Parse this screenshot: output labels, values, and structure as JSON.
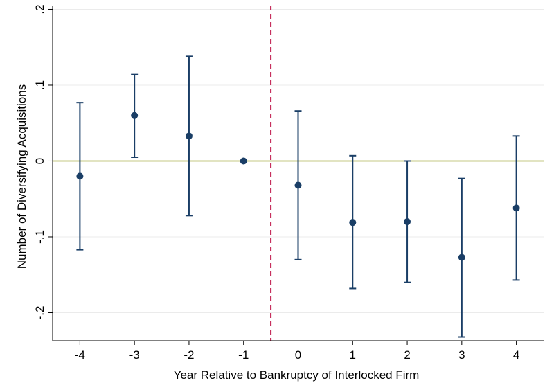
{
  "chart_data": {
    "type": "scatter",
    "title": "",
    "xlabel": "Year Relative to Bankruptcy of Interlocked Firm",
    "ylabel": "Number of Diversifying Acquisitions",
    "x_ticks": [
      "-4",
      "-3",
      "-2",
      "-1",
      "0",
      "1",
      "2",
      "3",
      "4"
    ],
    "y_ticks": [
      {
        "value": 0.2,
        "label": ".2"
      },
      {
        "value": 0.1,
        "label": ".1"
      },
      {
        "value": 0,
        "label": "0"
      },
      {
        "value": -0.1,
        "label": "-.1"
      },
      {
        "value": -0.2,
        "label": "-.2"
      }
    ],
    "xlim": [
      -4.5,
      4.5
    ],
    "ylim": [
      -0.237,
      0.205
    ],
    "grid": true,
    "reference_lines": {
      "horizontal_y": 0,
      "vertical_x": -0.5
    },
    "colors": {
      "marker": "#1a3e66",
      "zero_line": "#c6c884",
      "vertical_line": "#c0184a",
      "grid": "#ebebeb"
    },
    "series": [
      {
        "points": [
          {
            "x": -4,
            "y": -0.02,
            "lo": -0.117,
            "hi": 0.077
          },
          {
            "x": -3,
            "y": 0.06,
            "lo": 0.005,
            "hi": 0.114
          },
          {
            "x": -2,
            "y": 0.033,
            "lo": -0.072,
            "hi": 0.138
          },
          {
            "x": -1,
            "y": 0.0
          },
          {
            "x": 0,
            "y": -0.032,
            "lo": -0.13,
            "hi": 0.066
          },
          {
            "x": 1,
            "y": -0.081,
            "lo": -0.168,
            "hi": 0.007
          },
          {
            "x": 2,
            "y": -0.08,
            "lo": -0.16,
            "hi": 0.0
          },
          {
            "x": 3,
            "y": -0.127,
            "lo": -0.232,
            "hi": -0.023
          },
          {
            "x": 4,
            "y": -0.062,
            "lo": -0.157,
            "hi": 0.033
          }
        ]
      }
    ]
  }
}
